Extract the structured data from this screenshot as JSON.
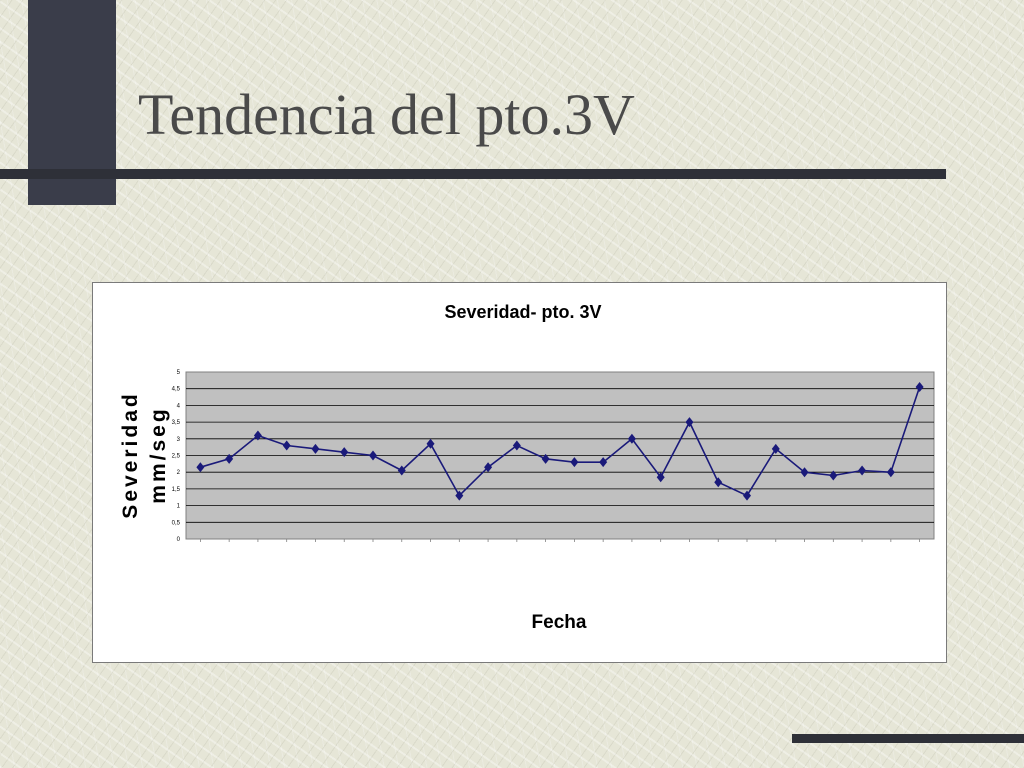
{
  "slide": {
    "title": "Tendencia del pto.3V"
  },
  "colors": {
    "background": "#e6e6d7",
    "accent_dark": "#2e3038",
    "plot_area": "#c0c0c0",
    "series_line": "#1a1a7a"
  },
  "chart_data": {
    "type": "line",
    "title": "Severidad- pto. 3V",
    "xlabel": "Fecha",
    "ylabel_lines": [
      "Severidad",
      "mm/seg"
    ],
    "ylim": [
      0,
      5
    ],
    "yticks": [
      0,
      0.5,
      1,
      1.5,
      2,
      2.5,
      3,
      3.5,
      4,
      4.5,
      5
    ],
    "ytick_labels": [
      "0",
      "0,5",
      "1",
      "1,5",
      "2",
      "2,5",
      "3",
      "3,5",
      "4",
      "4,5",
      "5"
    ],
    "grid": true,
    "legend": false,
    "marker": "diamond",
    "categories": [
      "",
      "",
      "",
      "",
      "",
      "",
      "",
      "",
      "",
      "",
      "",
      "",
      "",
      "",
      "",
      "",
      "",
      "",
      "",
      "",
      "",
      "",
      "",
      "",
      "",
      ""
    ],
    "values": [
      2.15,
      2.4,
      3.1,
      2.8,
      2.7,
      2.6,
      2.5,
      2.05,
      2.85,
      1.3,
      2.15,
      2.8,
      2.4,
      2.3,
      2.3,
      3.0,
      1.85,
      3.5,
      1.7,
      1.3,
      2.7,
      2.0,
      1.9,
      2.05,
      2.0,
      4.55
    ]
  }
}
